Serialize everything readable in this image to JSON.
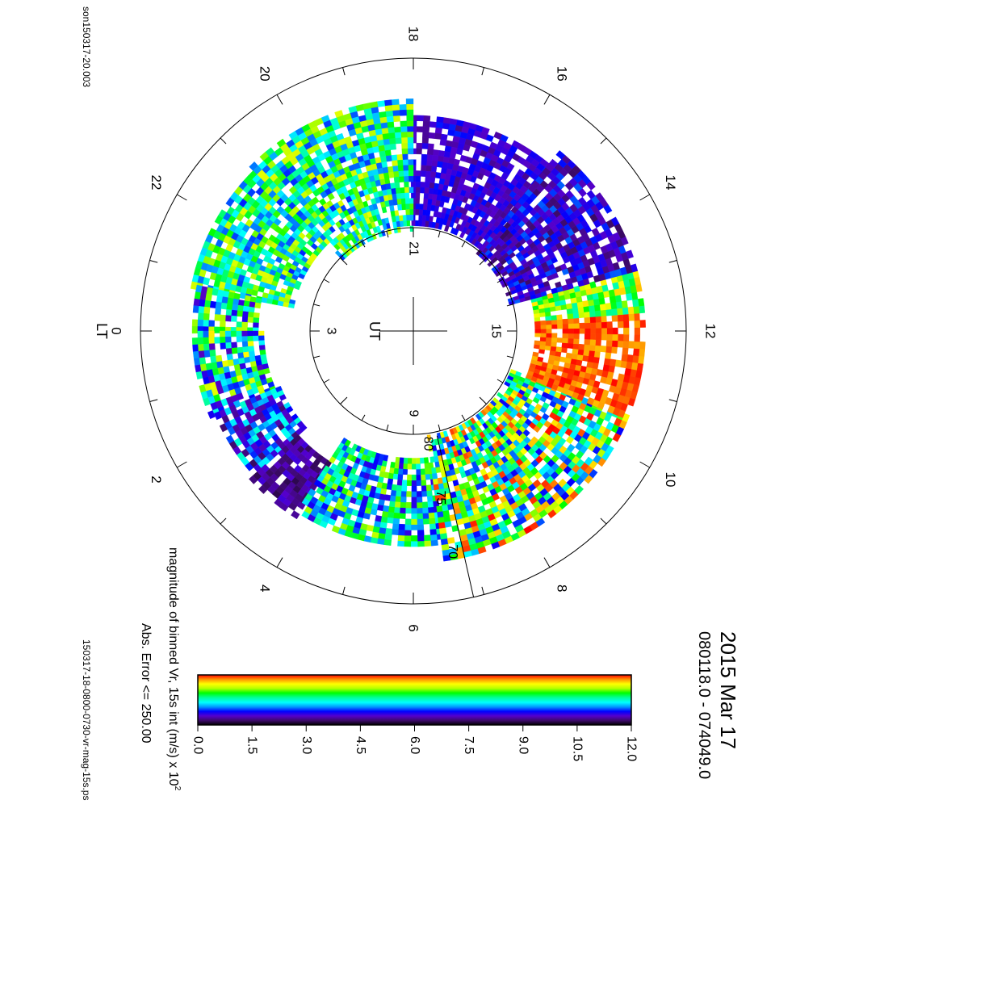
{
  "chart_data": {
    "type": "heatmap",
    "projection": "polar dial plot (magnetic latitude / local time), rendered rotated 90 degrees",
    "title": "2015 Mar 17",
    "time_range": "080118.0 - 074049.0",
    "file_label_left": "son150317-20.003",
    "file_label_bottom": "150317-18-0800-0730-vr-mag-15s.ps",
    "lt_axis_label": "LT",
    "ut_axis_label": "UT",
    "lt_ticks": [
      "0",
      "2",
      "4",
      "6",
      "8",
      "10",
      "12",
      "14",
      "16",
      "18",
      "20",
      "22"
    ],
    "ut_ticks": [
      "3",
      "9",
      "15",
      "21"
    ],
    "latitude_labels": [
      "80",
      "75",
      "70"
    ],
    "colorbar": {
      "title": "magnitude of binned Vr, 15s int (m/s) x 10",
      "title_exponent": "2",
      "subtitle": "Abs. Error <= 250.00",
      "min": 0.0,
      "max": 12.0,
      "tick_labels": [
        "0.0",
        "1.5",
        "3.0",
        "4.5",
        "6.0",
        "7.5",
        "9.0",
        "10.5",
        "12.0"
      ],
      "colormap": [
        "#000000",
        "#3d0a6a",
        "#5500cc",
        "#0000ff",
        "#0096ff",
        "#00ffff",
        "#00ff96",
        "#00ff00",
        "#b4ff00",
        "#ffff00",
        "#ff9600",
        "#ff0000"
      ]
    },
    "sectors": [
      {
        "lt_start": 15.3,
        "lt_end": 18.0,
        "lat_min": 70.5,
        "lat_max": 80.5,
        "value_range": [
          1.5,
          3.5
        ]
      },
      {
        "lt_start": 18.0,
        "lt_end": 21.0,
        "lat_min": 69.0,
        "lat_max": 81.0,
        "value_range": [
          3.5,
          9.5
        ]
      },
      {
        "lt_start": 21.0,
        "lt_end": 23.2,
        "lat_min": 69.5,
        "lat_max": 79.0,
        "value_range": [
          3.5,
          9.5
        ]
      },
      {
        "lt_start": 23.2,
        "lt_end": 24.0,
        "lat_min": 70.0,
        "lat_max": 76.0,
        "value_range": [
          2.0,
          9.0
        ]
      },
      {
        "lt_start": 0.0,
        "lt_end": 1.5,
        "lat_min": 70.0,
        "lat_max": 76.5,
        "value_range": [
          2.0,
          10.0
        ]
      },
      {
        "lt_start": 1.5,
        "lt_end": 2.8,
        "lat_min": 70.5,
        "lat_max": 77.0,
        "value_range": [
          1.0,
          6.0
        ]
      },
      {
        "lt_start": 2.8,
        "lt_end": 3.8,
        "lat_min": 70.0,
        "lat_max": 76.0,
        "value_range": [
          0.8,
          2.5
        ]
      },
      {
        "lt_start": 3.8,
        "lt_end": 6.5,
        "lat_min": 70.5,
        "lat_max": 78.5,
        "value_range": [
          2.5,
          9.0
        ]
      },
      {
        "lt_start": 6.5,
        "lt_end": 10.5,
        "lat_min": 69.0,
        "lat_max": 80.5,
        "value_range": [
          3.0,
          12.0
        ]
      },
      {
        "lt_start": 10.5,
        "lt_end": 12.3,
        "lat_min": 69.0,
        "lat_max": 79.0,
        "value_range": [
          10.5,
          12.0
        ]
      },
      {
        "lt_start": 12.3,
        "lt_end": 13.0,
        "lat_min": 69.0,
        "lat_max": 79.0,
        "value_range": [
          6.0,
          10.5
        ]
      },
      {
        "lt_start": 13.0,
        "lt_end": 15.3,
        "lat_min": 69.0,
        "lat_max": 81.0,
        "value_range": [
          1.0,
          4.0
        ]
      }
    ]
  }
}
